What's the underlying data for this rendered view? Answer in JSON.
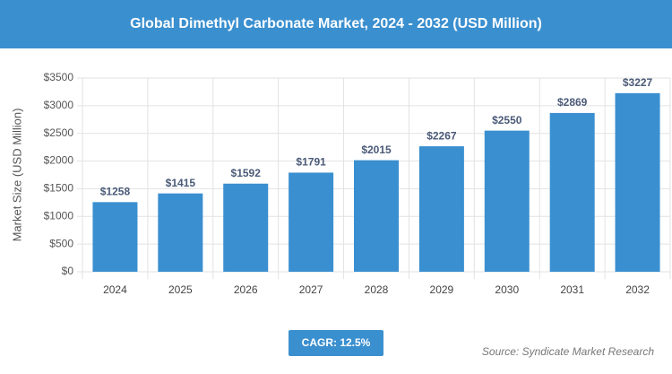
{
  "chart_data": {
    "type": "bar",
    "title": "Global Dimethyl Carbonate Market, 2024 - 2032 (USD Million)",
    "y_label": "Market Size (USD Million)",
    "categories": [
      "2024",
      "2025",
      "2026",
      "2027",
      "2028",
      "2029",
      "2030",
      "2031",
      "2032"
    ],
    "values": [
      1258,
      1415,
      1592,
      1791,
      2015,
      2267,
      2550,
      2869,
      3227
    ],
    "value_labels": [
      "$1258",
      "$1415",
      "$1592",
      "$1791",
      "$2015",
      "$2267",
      "$2550",
      "$2869",
      "$3227"
    ],
    "color": "#3a8fd0",
    "ylim": [
      0,
      3500
    ],
    "yticks": [
      {
        "value": 0,
        "label": "$0"
      },
      {
        "value": 500,
        "label": "$500"
      },
      {
        "value": 1000,
        "label": "$1000"
      },
      {
        "value": 1500,
        "label": "$1500"
      },
      {
        "value": 2000,
        "label": "$2000"
      },
      {
        "value": 2500,
        "label": "$2500"
      },
      {
        "value": 3000,
        "label": "$3000"
      },
      {
        "value": 3500,
        "label": "$3500"
      }
    ],
    "grid": true,
    "cagr": "CAGR: 12.5%",
    "source": "Source: Syndicate Market Research"
  }
}
